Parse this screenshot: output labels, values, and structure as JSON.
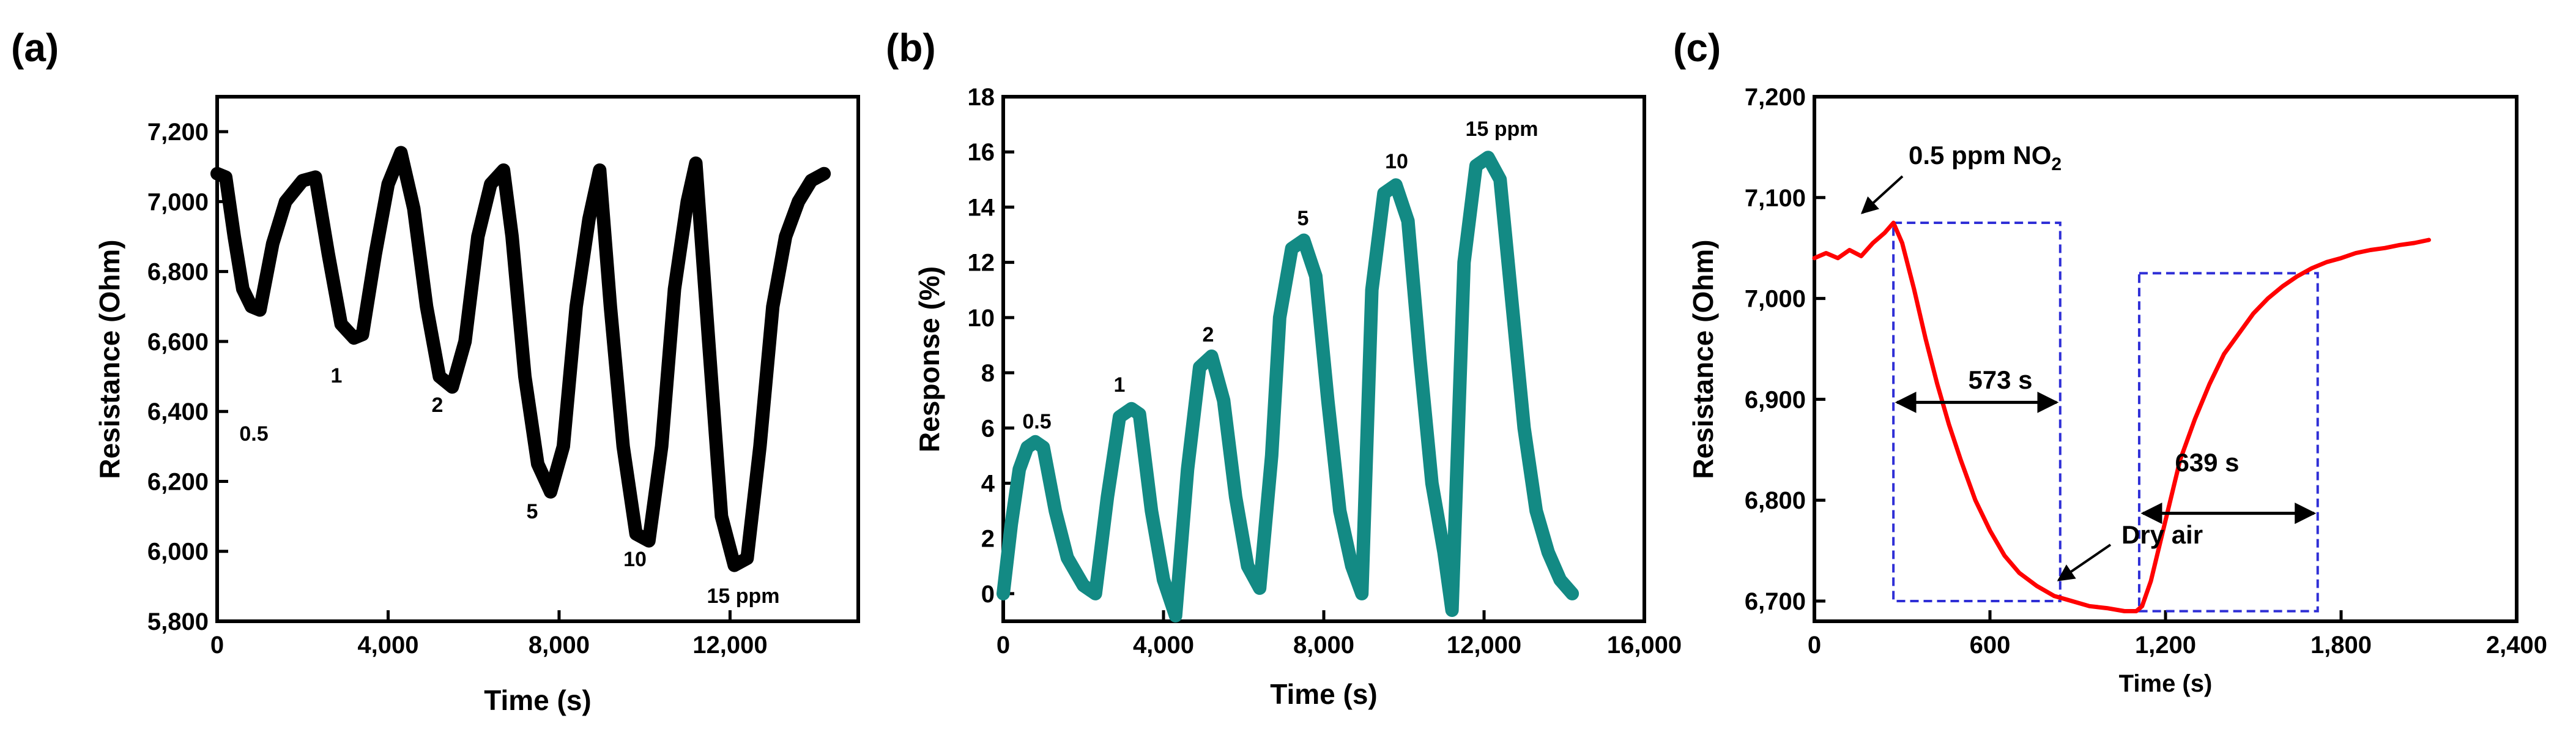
{
  "chart_data": [
    {
      "panel": "(a)",
      "type": "line",
      "title": "",
      "xlabel": "Time (s)",
      "ylabel": "Resistance (Ohm)",
      "xlim": [
        0,
        15000
      ],
      "ylim": [
        5800,
        7300
      ],
      "xticks": [
        0,
        4000,
        8000,
        12000
      ],
      "yticks": [
        5800,
        6000,
        6200,
        6400,
        6600,
        6800,
        7000,
        7200
      ],
      "xtick_labels": [
        "0",
        "4,000",
        "8,000",
        "12,000"
      ],
      "ytick_labels": [
        "5,800",
        "6,000",
        "6,200",
        "6,400",
        "6,600",
        "6,800",
        "7,000",
        "7,200"
      ],
      "color": "#000000",
      "series": [
        {
          "name": "Resistance",
          "x": [
            0,
            200,
            400,
            600,
            800,
            1000,
            1300,
            1600,
            2000,
            2300,
            2600,
            2900,
            3200,
            3400,
            3700,
            4000,
            4300,
            4600,
            4900,
            5200,
            5500,
            5800,
            6100,
            6400,
            6700,
            6900,
            7200,
            7500,
            7800,
            8100,
            8400,
            8700,
            8950,
            9200,
            9500,
            9800,
            10100,
            10400,
            10700,
            11000,
            11200,
            11500,
            11800,
            12100,
            12400,
            12700,
            13000,
            13300,
            13600,
            13900,
            14200
          ],
          "values": [
            7080,
            7070,
            6900,
            6750,
            6700,
            6690,
            6880,
            7000,
            7060,
            7070,
            6850,
            6650,
            6610,
            6620,
            6850,
            7050,
            7140,
            6980,
            6700,
            6500,
            6470,
            6600,
            6900,
            7050,
            7090,
            6900,
            6500,
            6250,
            6170,
            6300,
            6700,
            6950,
            7090,
            6700,
            6300,
            6050,
            6030,
            6300,
            6750,
            7000,
            7110,
            6600,
            6100,
            5960,
            5980,
            6300,
            6700,
            6900,
            7000,
            7060,
            7080
          ]
        }
      ],
      "annotations": [
        "0.5",
        "1",
        "2",
        "5",
        "10",
        "15 ppm"
      ]
    },
    {
      "panel": "(b)",
      "type": "line",
      "title": "",
      "xlabel": "Time (s)",
      "ylabel": "Response (%)",
      "xlim": [
        0,
        16000
      ],
      "ylim": [
        -1,
        18
      ],
      "xticks": [
        0,
        4000,
        8000,
        12000,
        16000
      ],
      "yticks": [
        0,
        2,
        4,
        6,
        8,
        10,
        12,
        14,
        16,
        18
      ],
      "xtick_labels": [
        "0",
        "4,000",
        "8,000",
        "12,000",
        "16,000"
      ],
      "ytick_labels": [
        "0",
        "2",
        "4",
        "6",
        "8",
        "10",
        "12",
        "14",
        "16",
        "18"
      ],
      "color": "#138a84",
      "series": [
        {
          "name": "Response",
          "x": [
            0,
            200,
            400,
            600,
            800,
            1000,
            1300,
            1600,
            2000,
            2300,
            2600,
            2900,
            3200,
            3400,
            3700,
            4000,
            4300,
            4600,
            4900,
            5200,
            5500,
            5800,
            6100,
            6400,
            6700,
            6900,
            7200,
            7500,
            7800,
            8100,
            8400,
            8700,
            8950,
            9200,
            9500,
            9800,
            10100,
            10400,
            10700,
            11000,
            11200,
            11500,
            11800,
            12100,
            12400,
            12700,
            13000,
            13300,
            13600,
            13900,
            14200
          ],
          "values": [
            0,
            2.5,
            4.5,
            5.3,
            5.5,
            5.3,
            3.0,
            1.3,
            0.3,
            0,
            3.5,
            6.4,
            6.7,
            6.5,
            3.0,
            0.5,
            -0.8,
            4.5,
            8.2,
            8.6,
            7.0,
            3.5,
            1.0,
            0.2,
            5.0,
            10.0,
            12.5,
            12.8,
            11.5,
            7.0,
            3.0,
            1.0,
            0,
            11.0,
            14.5,
            14.8,
            13.5,
            8.5,
            4.0,
            1.5,
            -0.6,
            12.0,
            15.5,
            15.8,
            15.0,
            10.5,
            6.0,
            3.0,
            1.5,
            0.5,
            0
          ]
        }
      ],
      "annotations": [
        "0.5",
        "1",
        "2",
        "5",
        "10",
        "15 ppm"
      ]
    },
    {
      "panel": "(c)",
      "type": "line",
      "title": "",
      "xlabel": "Time (s)",
      "ylabel": "Resistance (Ohm)",
      "xlim": [
        0,
        2400
      ],
      "ylim": [
        6680,
        7200
      ],
      "xticks": [
        0,
        600,
        1200,
        1800,
        2400
      ],
      "yticks": [
        6700,
        6800,
        6900,
        7000,
        7100,
        7200
      ],
      "xtick_labels": [
        "0",
        "600",
        "1,200",
        "1,800",
        "2,400"
      ],
      "ytick_labels": [
        "6,700",
        "6,800",
        "6,900",
        "7,000",
        "7,100",
        "7,200"
      ],
      "color": "#ff0000",
      "series": [
        {
          "name": "Resistance",
          "x": [
            0,
            40,
            80,
            120,
            160,
            200,
            240,
            270,
            300,
            340,
            380,
            420,
            460,
            500,
            550,
            600,
            650,
            700,
            760,
            820,
            880,
            940,
            1000,
            1060,
            1100,
            1120,
            1150,
            1200,
            1250,
            1300,
            1350,
            1400,
            1450,
            1500,
            1550,
            1600,
            1650,
            1700,
            1750,
            1800,
            1850,
            1900,
            1950,
            2000,
            2050,
            2100
          ],
          "values": [
            7040,
            7045,
            7040,
            7048,
            7042,
            7055,
            7065,
            7075,
            7055,
            7010,
            6960,
            6915,
            6875,
            6840,
            6800,
            6770,
            6745,
            6728,
            6715,
            6705,
            6700,
            6695,
            6693,
            6690,
            6690,
            6695,
            6720,
            6780,
            6840,
            6880,
            6915,
            6945,
            6965,
            6985,
            7000,
            7012,
            7022,
            7030,
            7036,
            7040,
            7045,
            7048,
            7050,
            7053,
            7055,
            7058
          ]
        }
      ],
      "annotations": {
        "gas_label": "0.5 ppm NO",
        "gas_label_sub": "2",
        "air_label": "Dry air",
        "response_time": "573 s",
        "recovery_time": "639 s"
      },
      "boxes": [
        {
          "t0": 270,
          "t1": 840,
          "r0": 6700,
          "r1": 7075
        },
        {
          "t0": 1110,
          "t1": 1720,
          "r0": 6690,
          "r1": 7025
        }
      ],
      "arrows": [
        {
          "t0": 270,
          "t1": 840,
          "r": 6897
        },
        {
          "t0": 1110,
          "t1": 1720,
          "r": 6787
        }
      ],
      "line_color": "#ff0000",
      "box_color": "#2f2fd6"
    }
  ]
}
